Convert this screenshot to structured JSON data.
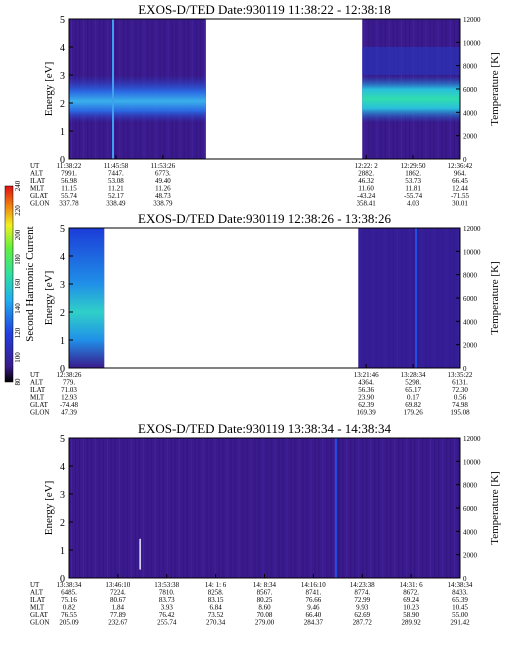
{
  "chart_data": [
    {
      "type": "heatmap",
      "title": "EXOS-D/TED   Date:930119   11:38:22 - 12:38:18",
      "ylabel": "Energy [eV]",
      "y2label": "Temperature [K]",
      "ylim": [
        0,
        5
      ],
      "yticks": [
        "0",
        "1",
        "2",
        "3",
        "4",
        "5"
      ],
      "y2lim": [
        0,
        12000
      ],
      "y2ticks": [
        "0",
        "2000",
        "4000",
        "6000",
        "8000",
        "10000",
        "12000"
      ],
      "data_intervals": [
        [
          0,
          0.35
        ],
        [
          0.75,
          1.0
        ]
      ],
      "ephemeris": {
        "labels": [
          "UT",
          "ALT",
          "ILAT",
          "MLT",
          "GLAT",
          "GLON"
        ],
        "columns": [
          {
            "pos": 0.0,
            "values": [
              "11:38:22",
              "7991.",
              "56.98",
              "11.15",
              "55.74",
              "337.78"
            ]
          },
          {
            "pos": 0.12,
            "values": [
              "11:45:58",
              "7447.",
              "53.08",
              "11.21",
              "52.17",
              "338.49"
            ]
          },
          {
            "pos": 0.24,
            "values": [
              "11:53:26",
              "6773.",
              "49.40",
              "11.26",
              "48.73",
              "338.79"
            ]
          },
          {
            "pos": 0.76,
            "values": [
              "12:22: 2",
              "2882.",
              "46.32",
              "11.60",
              "-43.24",
              "358.41"
            ]
          },
          {
            "pos": 0.88,
            "values": [
              "12:29:50",
              "1862.",
              "53.73",
              "11.81",
              "-55.74",
              "4.03"
            ]
          },
          {
            "pos": 1.0,
            "values": [
              "12:36:42",
              "964.",
              "66.45",
              "12.44",
              "-71.55",
              "30.01"
            ]
          }
        ]
      }
    },
    {
      "type": "heatmap",
      "title": "EXOS-D/TED   Date:930119   12:38:26 - 13:38:26",
      "ylabel": "Energy [eV]",
      "y2label": "Temperature [K]",
      "ylim": [
        0,
        5
      ],
      "yticks": [
        "0",
        "1",
        "2",
        "3",
        "4",
        "5"
      ],
      "y2lim": [
        0,
        12000
      ],
      "y2ticks": [
        "0",
        "2000",
        "4000",
        "6000",
        "8000",
        "10000",
        "12000"
      ],
      "data_intervals": [
        [
          0,
          0.09
        ],
        [
          0.74,
          1.0
        ]
      ],
      "colorbar": {
        "label": "Second Harmonic Current",
        "ticks": [
          "80",
          "100",
          "120",
          "140",
          "160",
          "180",
          "200",
          "220",
          "240"
        ]
      },
      "ephemeris": {
        "labels": [
          "UT",
          "ALT",
          "ILAT",
          "MLT",
          "GLAT",
          "GLON"
        ],
        "columns": [
          {
            "pos": 0.0,
            "values": [
              "12:38:26",
              "779.",
              "71.03",
              "12.93",
              "-74.48",
              "47.39"
            ]
          },
          {
            "pos": 0.76,
            "values": [
              "13:21:46",
              "4364.",
              "56.36",
              "23.90",
              "62.39",
              "169.39"
            ]
          },
          {
            "pos": 0.88,
            "values": [
              "13:28:34",
              "5298.",
              "65.17",
              "0.17",
              "69.82",
              "179.26"
            ]
          },
          {
            "pos": 1.0,
            "values": [
              "13:35:22",
              "6131.",
              "72.30",
              "0.56",
              "74.98",
              "195.08"
            ]
          }
        ]
      }
    },
    {
      "type": "heatmap",
      "title": "EXOS-D/TED   Date:930119   13:38:34 - 14:38:34",
      "ylabel": "Energy [eV]",
      "y2label": "Temperature [K]",
      "ylim": [
        0,
        5
      ],
      "yticks": [
        "0",
        "1",
        "2",
        "3",
        "4",
        "5"
      ],
      "y2lim": [
        0,
        12000
      ],
      "y2ticks": [
        "0",
        "2000",
        "4000",
        "6000",
        "8000",
        "10000",
        "12000"
      ],
      "data_intervals": [
        [
          0,
          1.0
        ]
      ],
      "ephemeris": {
        "labels": [
          "UT",
          "ALT",
          "ILAT",
          "MLT",
          "GLAT",
          "GLON"
        ],
        "columns": [
          {
            "pos": 0.0,
            "values": [
              "13:38:34",
              "6485.",
              "75.16",
              "0.82",
              "76.55",
              "205.09"
            ]
          },
          {
            "pos": 0.125,
            "values": [
              "13:46:10",
              "7224.",
              "80.67",
              "1.84",
              "77.89",
              "232.67"
            ]
          },
          {
            "pos": 0.25,
            "values": [
              "13:53:38",
              "7810.",
              "83.73",
              "3.93",
              "76.42",
              "255.74"
            ]
          },
          {
            "pos": 0.375,
            "values": [
              "14: 1: 6",
              "8258.",
              "83.15",
              "6.84",
              "73.52",
              "270.34"
            ]
          },
          {
            "pos": 0.5,
            "values": [
              "14: 8:34",
              "8567.",
              "80.25",
              "8.60",
              "70.08",
              "279.00"
            ]
          },
          {
            "pos": 0.625,
            "values": [
              "14:16:10",
              "8741.",
              "76.66",
              "9.46",
              "66.40",
              "284.37"
            ]
          },
          {
            "pos": 0.75,
            "values": [
              "14:23:38",
              "8774.",
              "72.99",
              "9.93",
              "62.69",
              "287.72"
            ]
          },
          {
            "pos": 0.875,
            "values": [
              "14:31: 6",
              "8672.",
              "69.24",
              "10.23",
              "58.90",
              "289.92"
            ]
          },
          {
            "pos": 1.0,
            "values": [
              "14:38:34",
              "8433.",
              "65.39",
              "10.45",
              "55.00",
              "291.42"
            ]
          }
        ]
      }
    }
  ]
}
